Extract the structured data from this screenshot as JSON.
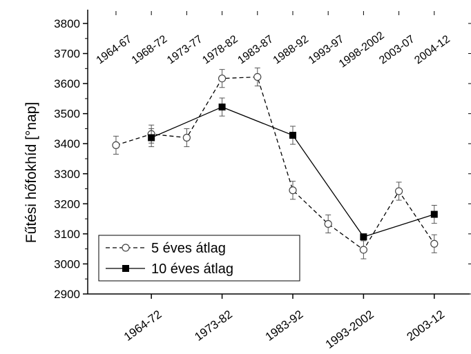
{
  "chart_data": {
    "type": "line",
    "ylabel": "Fűtési hőfokhíd [°nap]",
    "ylim": [
      2900,
      3800
    ],
    "yticks": [
      2900,
      3000,
      3100,
      3200,
      3300,
      3400,
      3500,
      3600,
      3700,
      3800
    ],
    "x_positions": [
      1,
      2,
      3,
      4,
      5,
      6,
      7,
      8,
      9,
      10
    ],
    "xlim": [
      0.2,
      11.0
    ],
    "top_tick_labels": [
      "1964-67",
      "1968-72",
      "1973-77",
      "1978-82",
      "1983-87",
      "1988-92",
      "1993-97",
      "1998-2002",
      "2003-07",
      "2004-12"
    ],
    "bottom_tick_labels": [
      "1964-72",
      "1973-82",
      "1983-92",
      "1993-2002",
      "2003-12"
    ],
    "bottom_tick_positions": [
      2,
      4,
      6,
      8,
      10
    ],
    "grid": false,
    "legend_position": "bottom-left",
    "series": [
      {
        "name": "5 éves átlag",
        "style": "dashed-open-circle",
        "color": "#000000",
        "x": [
          1,
          2,
          3,
          4,
          5,
          6,
          7,
          8,
          9,
          10
        ],
        "values": [
          3395,
          3432,
          3420,
          3617,
          3622,
          3245,
          3133,
          3047,
          3242,
          3067
        ],
        "error": [
          30,
          30,
          30,
          30,
          30,
          30,
          30,
          30,
          30,
          30
        ]
      },
      {
        "name": "10 éves átlag",
        "style": "solid-filled-square",
        "color": "#000000",
        "x": [
          2,
          4,
          6,
          8,
          10
        ],
        "values": [
          3420,
          3522,
          3428,
          3090,
          3165
        ],
        "error": [
          30,
          30,
          30,
          10,
          30
        ]
      }
    ]
  }
}
